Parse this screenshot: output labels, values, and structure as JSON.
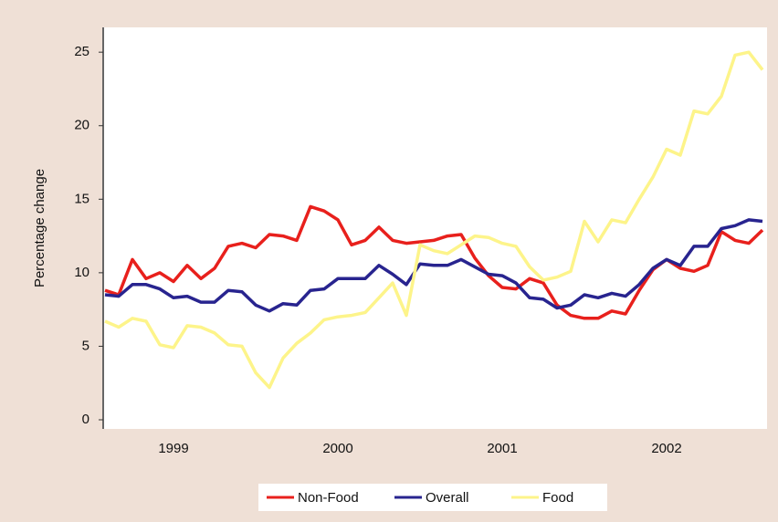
{
  "chart_data": {
    "type": "line",
    "y_label": "Percentage change",
    "categories": [
      null,
      null,
      null,
      null,
      null,
      "1999",
      null,
      null,
      null,
      null,
      null,
      null,
      null,
      null,
      null,
      null,
      null,
      "2000",
      null,
      null,
      null,
      null,
      null,
      null,
      null,
      null,
      null,
      null,
      null,
      "2001",
      null,
      null,
      null,
      null,
      null,
      null,
      null,
      null,
      null,
      null,
      null,
      "2002",
      null,
      null,
      null,
      null,
      null,
      null,
      null
    ],
    "series": [
      {
        "name": "Non-Food",
        "color": "#e8201c",
        "values": [
          8.8,
          8.5,
          10.9,
          9.6,
          10.0,
          9.4,
          10.5,
          9.6,
          10.3,
          11.8,
          12.0,
          11.7,
          12.6,
          12.5,
          12.2,
          14.5,
          14.2,
          13.6,
          11.9,
          12.2,
          13.1,
          12.2,
          12.0,
          12.1,
          12.2,
          12.5,
          12.6,
          11.0,
          9.8,
          9.0,
          8.9,
          9.6,
          9.3,
          7.8,
          7.1,
          6.9,
          6.9,
          7.4,
          7.2,
          8.8,
          10.2,
          10.9,
          10.3,
          10.1,
          10.5,
          12.8,
          12.2,
          12.0,
          12.9
        ]
      },
      {
        "name": "Overall",
        "color": "#28248f",
        "values": [
          8.5,
          8.4,
          9.2,
          9.2,
          8.9,
          8.3,
          8.4,
          8.0,
          8.0,
          8.8,
          8.7,
          7.8,
          7.4,
          7.9,
          7.8,
          8.8,
          8.9,
          9.6,
          9.6,
          9.6,
          10.5,
          9.9,
          9.2,
          10.6,
          10.5,
          10.5,
          10.9,
          10.4,
          9.9,
          9.8,
          9.3,
          8.3,
          8.2,
          7.6,
          7.8,
          8.5,
          8.3,
          8.6,
          8.4,
          9.2,
          10.3,
          10.9,
          10.5,
          11.8,
          11.8,
          13.0,
          13.2,
          13.6,
          13.5
        ]
      },
      {
        "name": "Food",
        "color": "#fdf48a",
        "values": [
          6.7,
          6.3,
          6.9,
          6.7,
          5.1,
          4.9,
          6.4,
          6.3,
          5.9,
          5.1,
          5.0,
          3.2,
          2.2,
          4.2,
          5.2,
          5.9,
          6.8,
          7.0,
          7.1,
          7.3,
          8.3,
          9.3,
          7.1,
          11.9,
          11.5,
          11.3,
          11.9,
          12.5,
          12.4,
          12.0,
          11.8,
          10.4,
          9.5,
          9.7,
          10.1,
          13.5,
          12.1,
          13.6,
          13.4,
          15.0,
          16.5,
          18.4,
          18.0,
          21.0,
          20.8,
          22.0,
          24.8,
          25.0,
          23.8
        ]
      }
    ],
    "ylim": [
      0,
      26.5
    ],
    "yticks": [
      0,
      5,
      10,
      15,
      20,
      25
    ]
  }
}
